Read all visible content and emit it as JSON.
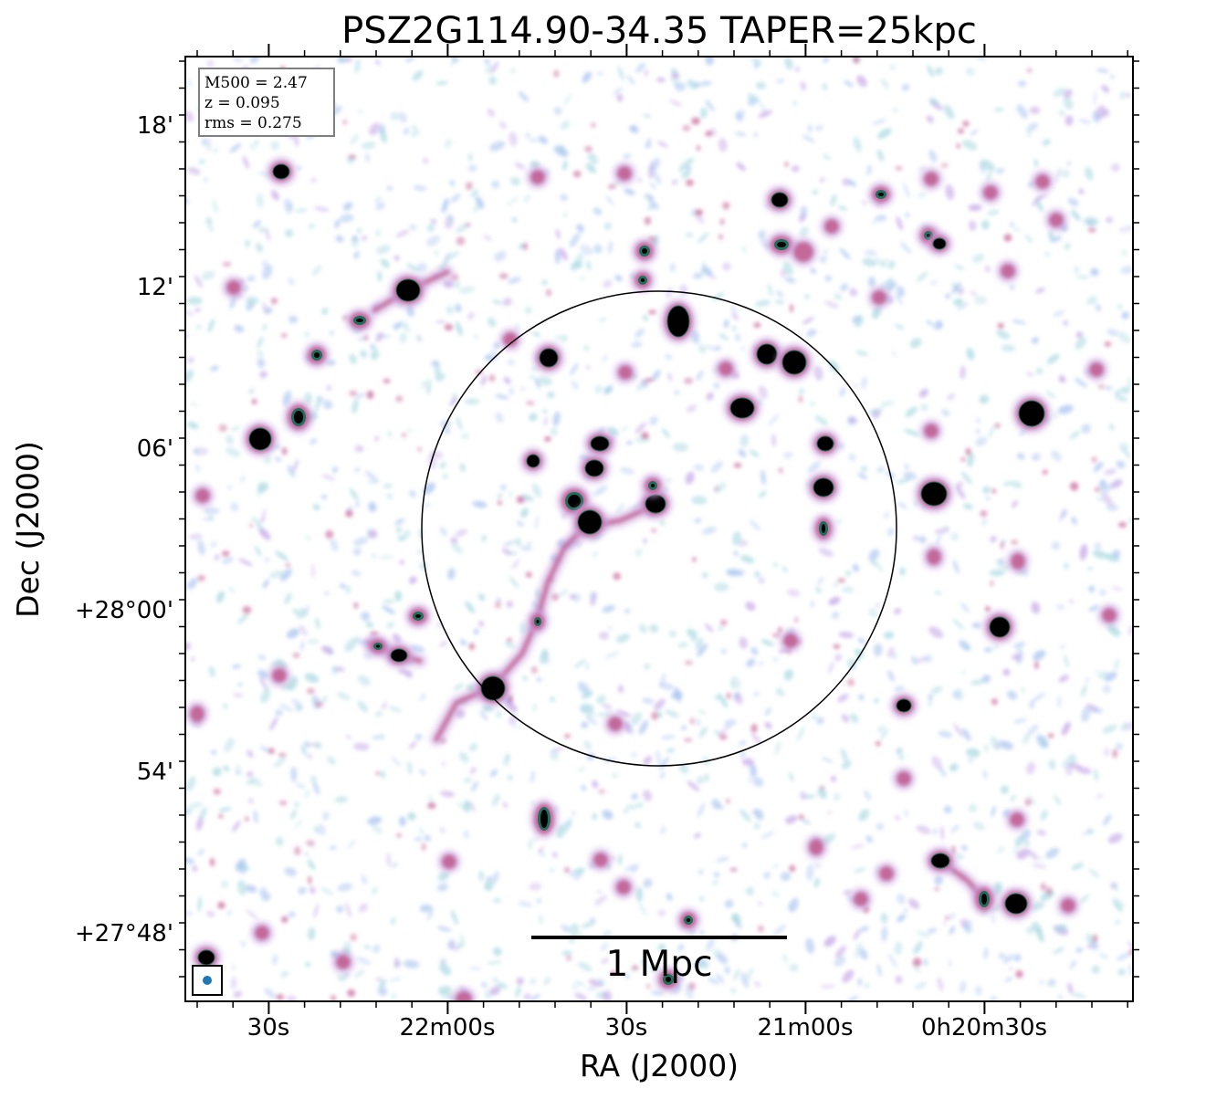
{
  "title": "PSZ2G114.90-34.35 TAPER=25kpc",
  "x_axis": {
    "label": "RA (J2000)",
    "ticks": [
      "30s",
      "22m00s",
      "30s",
      "21m00s",
      "0h20m30s"
    ]
  },
  "y_axis": {
    "label": "Dec (J2000)",
    "ticks": [
      "18'",
      "12'",
      "06'",
      "+28°00'",
      "54'",
      "+27°48'"
    ]
  },
  "info_box": {
    "m500": "M500 = 2.47",
    "z": "z = 0.095",
    "rms": "rms = 0.275"
  },
  "scalebar": {
    "label": "1 Mpc"
  },
  "colors": {
    "source_core": "#000000",
    "source_inner": "#1d6e5a",
    "source_mid": "#c05a8c",
    "source_outer": "#c9a0dc",
    "noise_blue": "#a9c4f0",
    "noise_cyan": "#a8d8e0",
    "noise_purple": "#c4a6e6",
    "beam": "#1f77b4"
  }
}
